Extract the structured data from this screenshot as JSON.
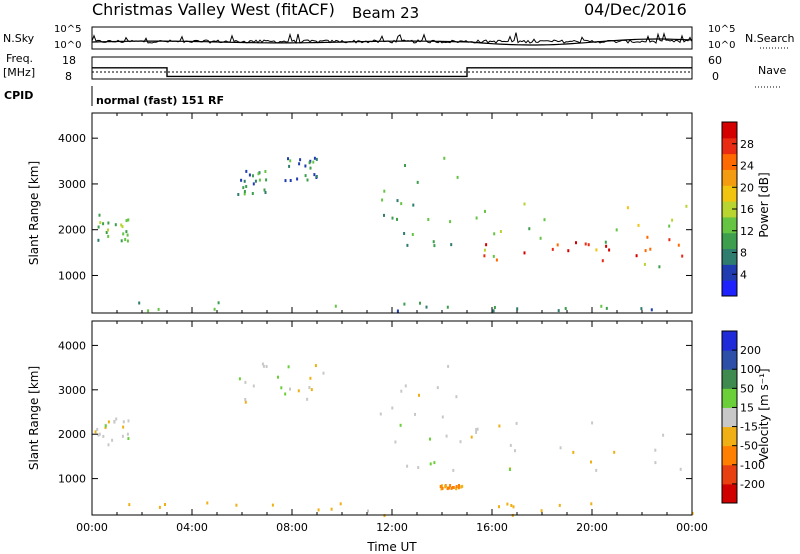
{
  "header": {
    "station": "Christmas Valley West (fitACF)",
    "beam": "Beam 23",
    "date": "04/Dec/2016"
  },
  "summary_panels": {
    "nsky_label": "N.Sky",
    "nsky_ticks": [
      "10^5",
      "10^0"
    ],
    "nsearch_label": "N.Search",
    "nsearch_ticks": [
      "10^5",
      "10^0"
    ],
    "freq_label_line1": "Freq.",
    "freq_label_line2": "[MHz]",
    "freq_ticks": [
      "18",
      "8"
    ],
    "nave_label": "Nave",
    "nave_ticks": [
      "60",
      "0"
    ],
    "cpid_label": "CPID",
    "cpid_text": "normal (fast) 151 RF",
    "freq_steps_mhz": [
      {
        "t0": 0.0,
        "t1": 3.0,
        "v": 14.2
      },
      {
        "t0": 3.0,
        "t1": 15.0,
        "v": 9.4
      },
      {
        "t0": 15.0,
        "t1": 24.0,
        "v": 14.2
      }
    ]
  },
  "colors": {
    "power": [
      "#1e22ff",
      "#1f3db0",
      "#2f7d6e",
      "#3d9e4e",
      "#66c443",
      "#b8d431",
      "#f1c40f",
      "#f39c12",
      "#ff6a00",
      "#e82b12",
      "#d40000"
    ],
    "velocity": [
      "#1f2bd8",
      "#2d4fa8",
      "#3f8a4e",
      "#6bcf3a",
      "#c8c8c8",
      "#f0b015",
      "#ff7f00",
      "#e84010",
      "#d00000"
    ],
    "axis": "#000000"
  },
  "chart_data": [
    {
      "type": "heatmap",
      "name": "Power",
      "xlabel": "",
      "ylabel": "Slant Range [km]",
      "xlim": [
        0,
        24
      ],
      "ylim": [
        180,
        4550
      ],
      "yticks": [
        1000,
        2000,
        3000,
        4000
      ],
      "colorbar_label": "Power [dB]",
      "colorbar_ticks": [
        "4",
        "8",
        "12",
        "16",
        "20",
        "24",
        "28"
      ],
      "colorbar_range": [
        0,
        30
      ],
      "echo_regions": [
        {
          "t0": 0.1,
          "t1": 1.5,
          "r0": 1750,
          "r1": 2400,
          "value": 11
        },
        {
          "t0": 5.8,
          "t1": 7.0,
          "r0": 2800,
          "r1": 3400,
          "value": 8
        },
        {
          "t0": 7.7,
          "t1": 9.4,
          "r0": 3100,
          "r1": 3650,
          "value": 8
        },
        {
          "t0": 11.5,
          "t1": 14.8,
          "r0": 1200,
          "r1": 3700,
          "value": 9
        },
        {
          "t0": 15.0,
          "t1": 24.0,
          "r0": 1200,
          "r1": 2600,
          "value": 14
        },
        {
          "t0": 15.2,
          "t1": 23.8,
          "r0": 1350,
          "r1": 1900,
          "value": 26
        },
        {
          "t0": 0.0,
          "t1": 24.0,
          "r0": 200,
          "r1": 450,
          "value": 9
        }
      ]
    },
    {
      "type": "heatmap",
      "name": "Velocity",
      "xlabel": "Time UT",
      "ylabel": "Slant Range [km]",
      "xlim": [
        0,
        24
      ],
      "ylim": [
        180,
        4550
      ],
      "xticks": [
        "00:00",
        "04:00",
        "08:00",
        "12:00",
        "16:00",
        "20:00",
        "00:00"
      ],
      "yticks": [
        1000,
        2000,
        3000,
        4000
      ],
      "colorbar_label": "Velocity [m s⁻¹]",
      "colorbar_ticks": [
        "-200",
        "-100",
        "-50",
        "-15",
        "15",
        "50",
        "100",
        "200"
      ],
      "echo_regions": [
        {
          "t0": 0.1,
          "t1": 1.5,
          "r0": 1750,
          "r1": 2400,
          "value": 0
        },
        {
          "t0": 5.8,
          "t1": 9.4,
          "r0": 2700,
          "r1": 3650,
          "value": 0
        },
        {
          "t0": 11.5,
          "t1": 14.8,
          "r0": 1200,
          "r1": 3700,
          "value": 0
        },
        {
          "t0": 15.0,
          "t1": 24.0,
          "r0": 1200,
          "r1": 2400,
          "value": 0
        },
        {
          "t0": 13.8,
          "t1": 14.8,
          "r0": 800,
          "r1": 880,
          "value": -60
        },
        {
          "t0": 0.0,
          "t1": 24.0,
          "r0": 200,
          "r1": 500,
          "value": -30
        }
      ]
    }
  ]
}
